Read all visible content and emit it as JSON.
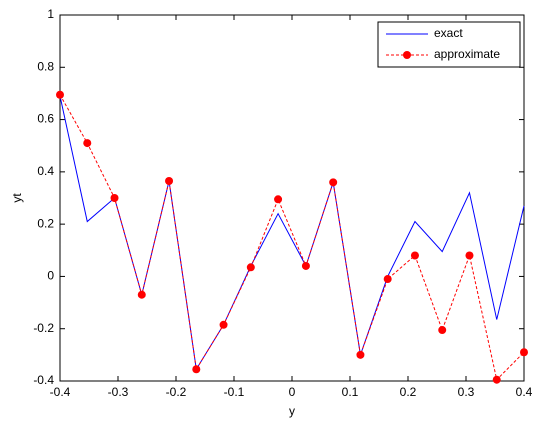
{
  "chart_data": {
    "type": "line",
    "x": [
      -0.4,
      -0.353,
      -0.306,
      -0.259,
      -0.212,
      -0.165,
      -0.118,
      -0.071,
      -0.024,
      0.024,
      0.071,
      0.118,
      0.165,
      0.212,
      0.259,
      0.306,
      0.353,
      0.4
    ],
    "series": [
      {
        "name": "exact",
        "color": "#0000ff",
        "linestyle": "solid",
        "marker": false,
        "values": [
          0.69,
          0.21,
          0.3,
          -0.07,
          0.365,
          -0.355,
          -0.185,
          0.04,
          0.24,
          0.04,
          0.36,
          -0.3,
          0.0,
          0.21,
          0.095,
          0.32,
          -0.165,
          0.27
        ]
      },
      {
        "name": "approximate",
        "color": "#ff0000",
        "linestyle": "dashed",
        "marker": true,
        "values": [
          0.695,
          0.51,
          0.3,
          -0.07,
          0.365,
          -0.355,
          -0.185,
          0.035,
          0.295,
          0.04,
          0.36,
          -0.3,
          -0.01,
          0.08,
          -0.205,
          0.08,
          -0.395,
          -0.29
        ]
      }
    ],
    "xlabel": "y",
    "ylabel": "yt",
    "xlim": [
      -0.4,
      0.4
    ],
    "xticks": [
      -0.4,
      -0.3,
      -0.2,
      -0.1,
      0,
      0.1,
      0.2,
      0.3,
      0.4
    ],
    "ylim": [
      -0.4,
      1
    ],
    "yticks": [
      -0.4,
      -0.2,
      0,
      0.2,
      0.4,
      0.6,
      0.8,
      1
    ],
    "grid": false,
    "legend": "top-right"
  }
}
